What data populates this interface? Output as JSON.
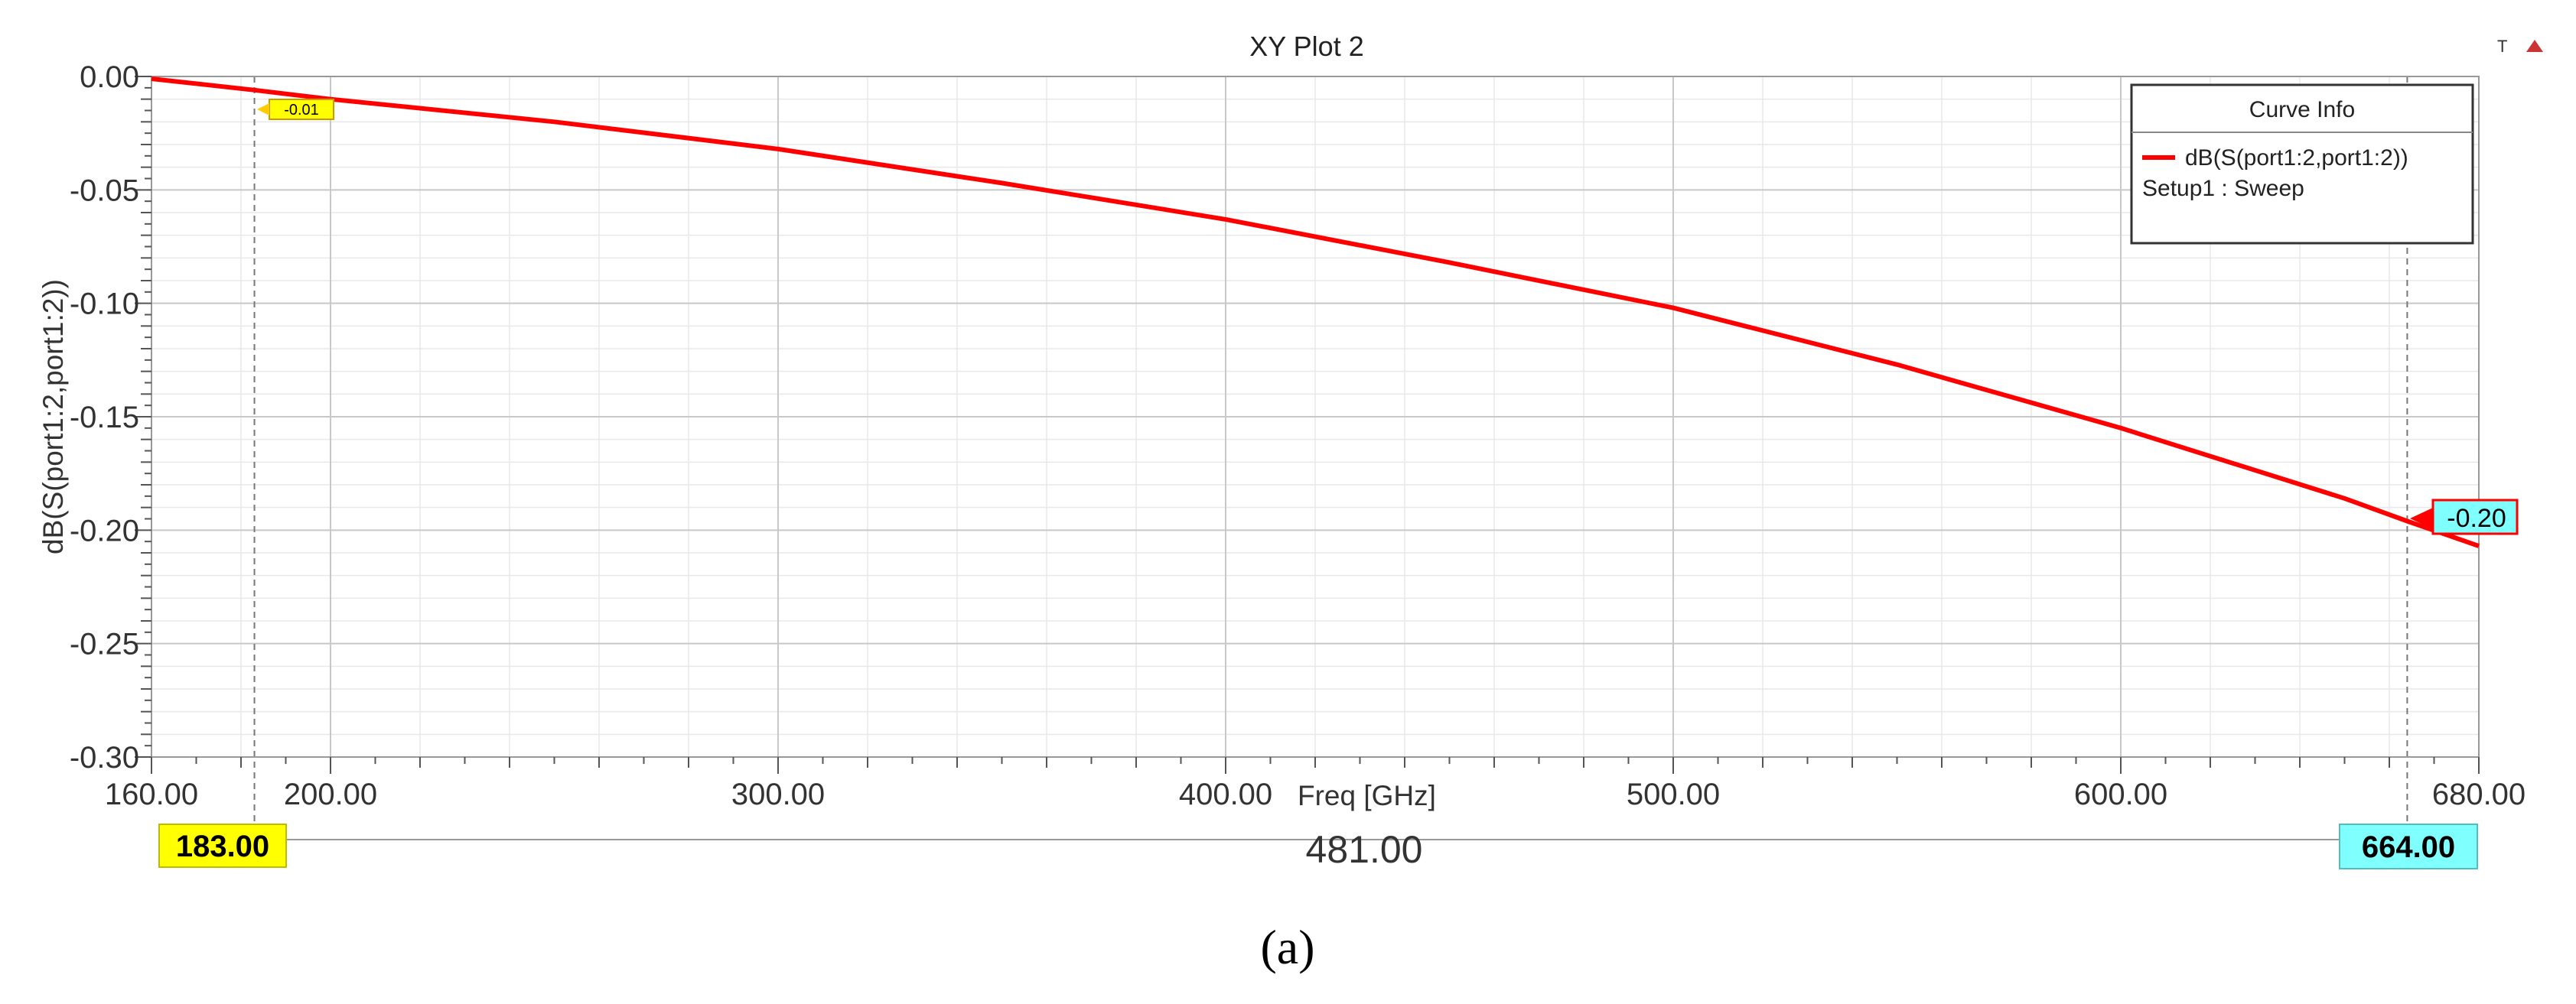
{
  "colors": {
    "curve": "#ff0000",
    "grid_major": "#c8c8c8",
    "grid_minor": "#e8e8e8",
    "marker1_fill": "#ffff00",
    "marker2_fill": "#80ffff",
    "legend_border": "#333333"
  },
  "toolbar": {
    "t_icon": "T",
    "arrow_icon": "triangle-up-icon"
  },
  "caption": "(a)",
  "chart_data": {
    "type": "line",
    "title": "XY Plot 2",
    "xlabel": "Freq [GHz]",
    "ylabel": "dB(S(port1:2,port1:2))",
    "xlim": [
      160,
      680
    ],
    "ylim": [
      -0.3,
      0.0
    ],
    "x_ticks": [
      "160.00",
      "200.00",
      "300.00",
      "400.00",
      "500.00",
      "600.00",
      "680.00"
    ],
    "x_tick_values": [
      160,
      200,
      300,
      400,
      500,
      600,
      680
    ],
    "y_ticks": [
      "0.00",
      "-0.05",
      "-0.10",
      "-0.15",
      "-0.20",
      "-0.25",
      "-0.30"
    ],
    "y_tick_values": [
      0.0,
      -0.05,
      -0.1,
      -0.15,
      -0.2,
      -0.25,
      -0.3
    ],
    "grid": true,
    "legend": {
      "title": "Curve Info",
      "placement": "top-right",
      "entries": [
        {
          "name": "dB(S(port1:2,port1:2))",
          "sub": "Setup1 : Sweep"
        }
      ]
    },
    "series": [
      {
        "name": "dB(S(port1:2,port1:2))",
        "x": [
          160,
          183,
          200,
          250,
          300,
          350,
          400,
          450,
          500,
          550,
          600,
          650,
          664,
          680
        ],
        "y": [
          -0.001,
          -0.006,
          -0.01,
          -0.02,
          -0.032,
          -0.047,
          -0.063,
          -0.082,
          -0.102,
          -0.127,
          -0.155,
          -0.186,
          -0.196,
          -0.207
        ]
      }
    ],
    "markers": [
      {
        "name": "m1",
        "x": 183,
        "y": -0.006,
        "x_label": "183.00",
        "y_label": "-0.01"
      },
      {
        "name": "m2",
        "x": 664,
        "y": -0.196,
        "x_label": "664.00",
        "y_label": "-0.20"
      }
    ],
    "delta_label": "481.00"
  }
}
